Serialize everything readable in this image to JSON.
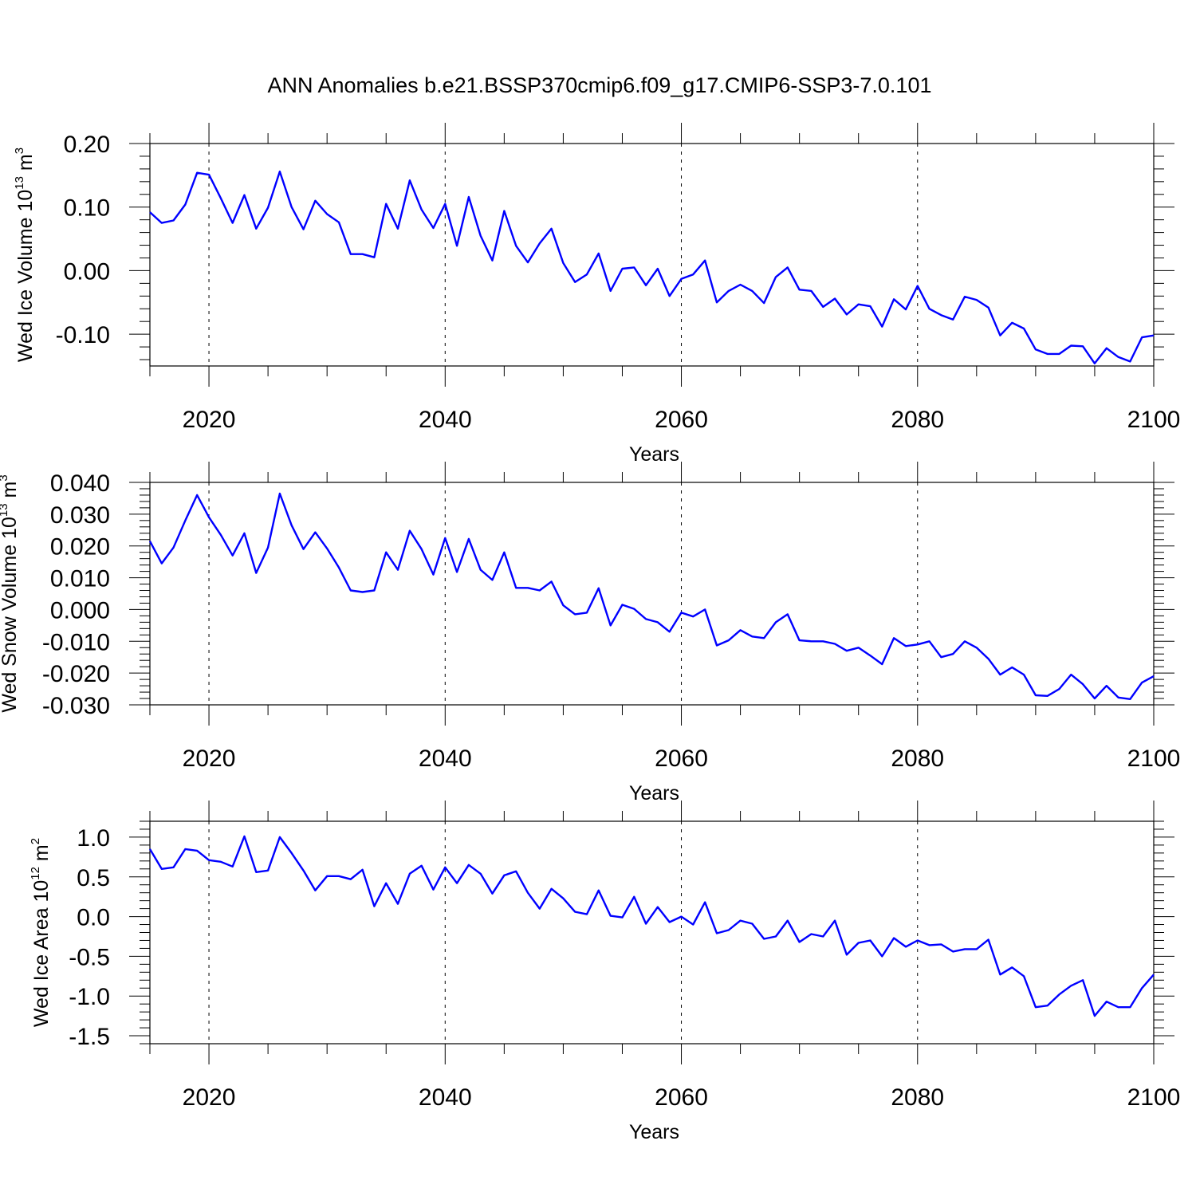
{
  "figure": {
    "title": "ANN Anomalies b.e21.BSSP370cmip6.f09_g17.CMIP6-SSP3-7.0.101",
    "line_color": "#0000ff"
  },
  "chart_data": [
    {
      "type": "line",
      "ylabel": "Wed Ice Volume 10",
      "ylabel_exponent": "13",
      "ylabel_unit": "m",
      "ylabel_unit_exponent": "3",
      "xlabel": "Years",
      "xlim": [
        2015,
        2100
      ],
      "ylim": [
        -0.15,
        0.2
      ],
      "yticks": [
        0.2,
        0.1,
        0.0,
        -0.1
      ],
      "ytick_labels": [
        "0.20",
        "0.10",
        "0.00",
        "-0.10"
      ],
      "xticks": [
        2020,
        2040,
        2060,
        2080,
        2100
      ],
      "xtick_labels": [
        "2020",
        "2040",
        "2060",
        "2080",
        "2100"
      ],
      "grid_x": "dashed",
      "series": [
        {
          "x_start": 2015,
          "values": [
            0.092,
            0.075,
            0.079,
            0.104,
            0.154,
            0.151,
            0.114,
            0.075,
            0.119,
            0.066,
            0.099,
            0.156,
            0.1,
            0.065,
            0.11,
            0.089,
            0.076,
            0.026,
            0.026,
            0.021,
            0.105,
            0.066,
            0.142,
            0.096,
            0.067,
            0.105,
            0.039,
            0.116,
            0.055,
            0.016,
            0.094,
            0.039,
            0.013,
            0.043,
            0.066,
            0.012,
            -0.018,
            -0.006,
            0.027,
            -0.032,
            0.003,
            0.005,
            -0.023,
            0.003,
            -0.04,
            -0.013,
            -0.006,
            0.016,
            -0.05,
            -0.032,
            -0.022,
            -0.032,
            -0.051,
            -0.01,
            0.005,
            -0.03,
            -0.032,
            -0.057,
            -0.044,
            -0.069,
            -0.053,
            -0.056,
            -0.088,
            -0.045,
            -0.061,
            -0.024,
            -0.06,
            -0.07,
            -0.077,
            -0.041,
            -0.046,
            -0.058,
            -0.102,
            -0.082,
            -0.091,
            -0.124,
            -0.131,
            -0.131,
            -0.118,
            -0.119,
            -0.146,
            -0.122,
            -0.136,
            -0.143,
            -0.105,
            -0.102
          ]
        }
      ]
    },
    {
      "type": "line",
      "ylabel": "Wed Snow Volume 10",
      "ylabel_exponent": "13",
      "ylabel_unit": "m",
      "ylabel_unit_exponent": "3",
      "xlabel": "Years",
      "xlim": [
        2015,
        2100
      ],
      "ylim": [
        -0.03,
        0.04
      ],
      "yticks": [
        0.04,
        0.03,
        0.02,
        0.01,
        0.0,
        -0.01,
        -0.02,
        -0.03
      ],
      "ytick_labels": [
        "0.040",
        "0.030",
        "0.020",
        "0.010",
        "0.000",
        "-0.010",
        "-0.020",
        "-0.030"
      ],
      "xticks": [
        2020,
        2040,
        2060,
        2080,
        2100
      ],
      "xtick_labels": [
        "2020",
        "2040",
        "2060",
        "2080",
        "2100"
      ],
      "grid_x": "dashed",
      "series": [
        {
          "x_start": 2015,
          "values": [
            0.0215,
            0.0145,
            0.0195,
            0.028,
            0.036,
            0.029,
            0.0235,
            0.017,
            0.024,
            0.0115,
            0.0195,
            0.0365,
            0.0265,
            0.019,
            0.0243,
            0.0192,
            0.0132,
            0.006,
            0.0055,
            0.006,
            0.018,
            0.0125,
            0.0248,
            0.019,
            0.011,
            0.0225,
            0.0118,
            0.0222,
            0.0125,
            0.0093,
            0.018,
            0.0068,
            0.0068,
            0.006,
            0.0088,
            0.0013,
            -0.0015,
            -0.001,
            0.0067,
            -0.005,
            0.0015,
            0.0002,
            -0.003,
            -0.004,
            -0.007,
            -0.001,
            -0.0022,
            0.0,
            -0.0113,
            -0.0097,
            -0.0065,
            -0.0085,
            -0.009,
            -0.004,
            -0.0015,
            -0.0097,
            -0.01,
            -0.01,
            -0.0108,
            -0.013,
            -0.012,
            -0.0145,
            -0.0172,
            -0.009,
            -0.0115,
            -0.011,
            -0.01,
            -0.015,
            -0.014,
            -0.01,
            -0.012,
            -0.0155,
            -0.0205,
            -0.0182,
            -0.0205,
            -0.027,
            -0.0272,
            -0.025,
            -0.0205,
            -0.0235,
            -0.028,
            -0.024,
            -0.0277,
            -0.0282,
            -0.023,
            -0.021
          ]
        }
      ]
    },
    {
      "type": "line",
      "ylabel": "Wed Ice Area 10",
      "ylabel_exponent": "12",
      "ylabel_unit": "m",
      "ylabel_unit_exponent": "2",
      "xlabel": "Years",
      "xlim": [
        2015,
        2100
      ],
      "ylim": [
        -1.6,
        1.2
      ],
      "yticks": [
        1.0,
        0.5,
        0.0,
        -0.5,
        -1.0,
        -1.5
      ],
      "ytick_labels": [
        "1.0",
        "0.5",
        "0.0",
        "-0.5",
        "-1.0",
        "-1.5"
      ],
      "xticks": [
        2020,
        2040,
        2060,
        2080,
        2100
      ],
      "xtick_labels": [
        "2020",
        "2040",
        "2060",
        "2080",
        "2100"
      ],
      "grid_x": "dashed",
      "series": [
        {
          "x_start": 2015,
          "values": [
            0.85,
            0.6,
            0.62,
            0.85,
            0.83,
            0.71,
            0.69,
            0.63,
            1.01,
            0.56,
            0.58,
            1.0,
            0.8,
            0.58,
            0.33,
            0.51,
            0.51,
            0.47,
            0.59,
            0.13,
            0.42,
            0.16,
            0.54,
            0.64,
            0.34,
            0.62,
            0.42,
            0.65,
            0.54,
            0.29,
            0.52,
            0.57,
            0.3,
            0.1,
            0.35,
            0.23,
            0.06,
            0.03,
            0.33,
            0.01,
            -0.01,
            0.25,
            -0.09,
            0.12,
            -0.07,
            0.0,
            -0.1,
            0.18,
            -0.21,
            -0.17,
            -0.05,
            -0.09,
            -0.28,
            -0.25,
            -0.05,
            -0.32,
            -0.22,
            -0.25,
            -0.05,
            -0.48,
            -0.33,
            -0.3,
            -0.5,
            -0.27,
            -0.38,
            -0.3,
            -0.36,
            -0.35,
            -0.44,
            -0.41,
            -0.41,
            -0.29,
            -0.73,
            -0.64,
            -0.75,
            -1.14,
            -1.12,
            -0.98,
            -0.87,
            -0.8,
            -1.25,
            -1.07,
            -1.14,
            -1.14,
            -0.9,
            -0.73
          ]
        }
      ]
    }
  ]
}
